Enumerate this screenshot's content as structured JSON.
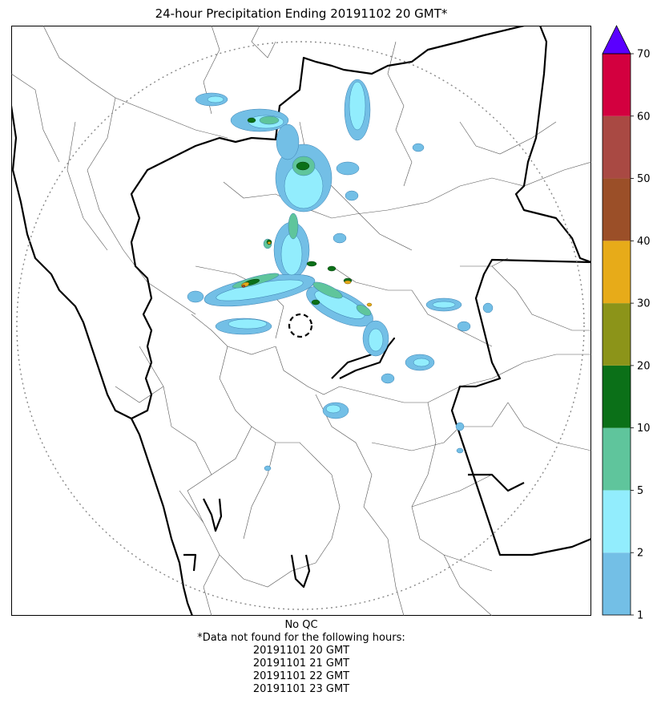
{
  "title": "24-hour Precipitation Ending 20191102 20 GMT*",
  "colorbar": {
    "ticks": [
      "1",
      "2",
      "5",
      "10",
      "20",
      "30",
      "40",
      "50",
      "60",
      "70"
    ],
    "colors": [
      "#73bfe6",
      "#92edfd",
      "#5fc59c",
      "#0b7018",
      "#8c9419",
      "#e7ab19",
      "#9b4f28",
      "#a94943",
      "#d3003f"
    ],
    "extend_color": "#5a00ff"
  },
  "footer": {
    "qc": "No QC",
    "missing_header": "*Data not found for the following hours:",
    "missing_hours": [
      "20191101 20 GMT",
      "20191101 21 GMT",
      "20191101 22 GMT",
      "20191101 23 GMT"
    ]
  }
}
